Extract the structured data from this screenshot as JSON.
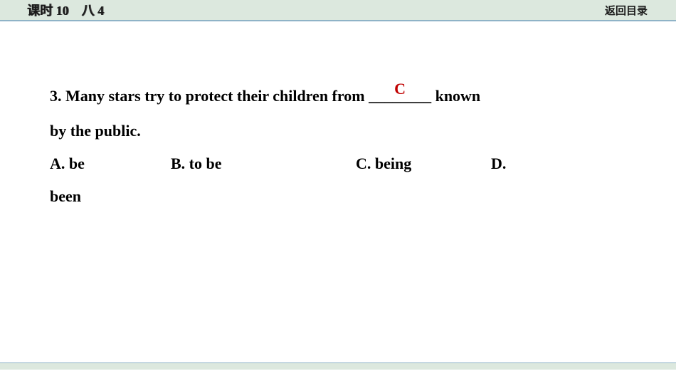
{
  "header": {
    "lesson_label": "课时 10　八 4",
    "return_label": "返回目录"
  },
  "question": {
    "number": "3.",
    "stem_part1": "Many stars try to protect their children from ",
    "blank": "________",
    "stem_part2": " known",
    "stem_line2": "by the public.",
    "answer": "C",
    "answer_color": "#c00000"
  },
  "options": {
    "a": "A. be",
    "b": "B.  to be",
    "c": "C.  being",
    "d_label": "D.",
    "d_text": "been"
  },
  "colors": {
    "header_bg": "#dce8de",
    "header_border": "#8fb3c7",
    "text": "#000000",
    "answer": "#c00000"
  }
}
